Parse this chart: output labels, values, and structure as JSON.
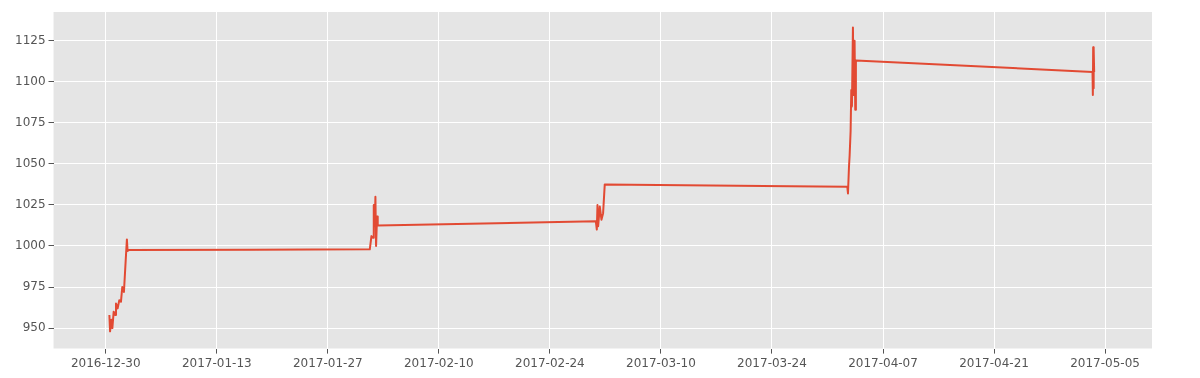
{
  "chart_data": {
    "type": "line",
    "grid": true,
    "legend": false,
    "marker": "none",
    "line_style": "solid",
    "xlim": [
      "2016-12-23T10:00",
      "2017-05-10T22:00"
    ],
    "xticks": [
      "2016-12-30",
      "2017-01-13",
      "2017-01-27",
      "2017-02-10",
      "2017-02-24",
      "2017-03-10",
      "2017-03-24",
      "2017-04-07",
      "2017-04-21",
      "2017-05-05"
    ],
    "ylim": [
      937.5,
      1142.5
    ],
    "yticks": [
      950,
      975,
      1000,
      1025,
      1050,
      1075,
      1100,
      1125
    ],
    "x": [
      "2016-12-30T11:00",
      "2016-12-30T13:00",
      "2016-12-30T17:00",
      "2016-12-30T20:00",
      "2016-12-31T00:00",
      "2016-12-31T04:00",
      "2016-12-31T07:00",
      "2016-12-31T12:00",
      "2016-12-31T17:00",
      "2016-12-31T22:00",
      "2017-01-01T02:00",
      "2017-01-01T07:00",
      "2017-01-01T12:00",
      "2017-01-01T16:00",
      "2017-01-01T18:00",
      "2017-01-01T22:00",
      "2017-02-01T07:00",
      "2017-02-01T12:00",
      "2017-02-01T17:00",
      "2017-02-01T19:00",
      "2017-02-01T22:00",
      "2017-02-02T00:00",
      "2017-02-02T02:00",
      "2017-02-02T05:00",
      "2017-02-02T07:00",
      "2017-03-01T19:00",
      "2017-03-01T22:00",
      "2017-03-02T00:00",
      "2017-03-02T02:00",
      "2017-03-02T07:00",
      "2017-03-02T12:00",
      "2017-03-02T17:00",
      "2017-03-02T22:00",
      "2017-04-02T12:00",
      "2017-04-02T14:00",
      "2017-04-02T17:00",
      "2017-04-02T19:00",
      "2017-04-02T22:00",
      "2017-04-03T00:00",
      "2017-04-03T02:00",
      "2017-04-03T05:00",
      "2017-04-03T07:00",
      "2017-04-03T10:00",
      "2017-04-03T12:00",
      "2017-04-03T14:00",
      "2017-05-03T10:00",
      "2017-05-03T11:00",
      "2017-05-03T12:00",
      "2017-05-03T13:00",
      "2017-05-03T14:00",
      "2017-05-03T15:00"
    ],
    "series": [
      {
        "color": "#e24a33",
        "values": [
          958,
          948,
          955,
          950,
          960,
          958,
          965,
          962,
          967,
          966,
          975,
          972,
          990,
          1004,
          997,
          997.5,
          998,
          1006,
          1005,
          1025,
          1012,
          1030,
          1000,
          1018,
          1012.5,
          1015,
          1010,
          1025,
          1012,
          1024,
          1016,
          1020,
          1037.5,
          1036,
          1032,
          1048,
          1055,
          1070,
          1095,
          1085,
          1133,
          1092,
          1125,
          1083,
          1113,
          1106,
          1092,
          1121,
          1096,
          1120,
          1106
        ]
      }
    ]
  }
}
